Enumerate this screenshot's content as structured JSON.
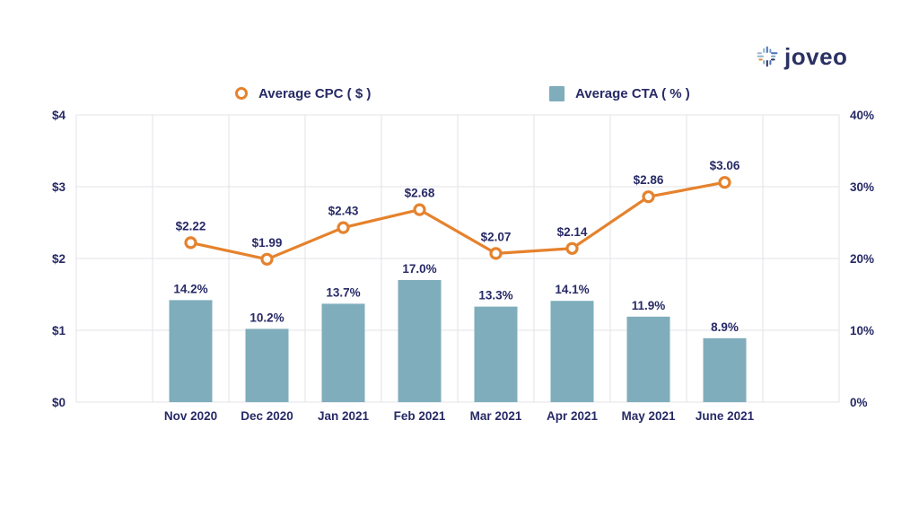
{
  "logo": {
    "text": "joveo"
  },
  "colors": {
    "accent_orange": "#E5822D",
    "bar_teal": "#7FADBB",
    "text_navy": "#272A66",
    "grid_gray": "#E3E3E9"
  },
  "chart_data": {
    "type": "combo",
    "grid": true,
    "legend_position": "top",
    "grid_color": "#E3E3E9",
    "categories": [
      "Nov 2020",
      "Dec 2020",
      "Jan 2021",
      "Feb 2021",
      "Mar 2021",
      "Apr 2021",
      "May 2021",
      "June 2021"
    ],
    "series": [
      {
        "name": "Average CPC ( $ )",
        "type": "line",
        "axis": "left",
        "color": "#E5822D",
        "values": [
          2.22,
          1.99,
          2.43,
          2.68,
          2.07,
          2.14,
          2.86,
          3.06
        ],
        "labels": [
          "$2.22",
          "$1.99",
          "$2.43",
          "$2.68",
          "$2.07",
          "$2.14",
          "$2.86",
          "$3.06"
        ]
      },
      {
        "name": "Average CTA ( % )",
        "type": "bar",
        "axis": "right",
        "color": "#7FADBB",
        "values": [
          14.2,
          10.2,
          13.7,
          17.0,
          13.3,
          14.1,
          11.9,
          8.9
        ],
        "labels": [
          "14.2%",
          "10.2%",
          "13.7%",
          "17.0%",
          "13.3%",
          "14.1%",
          "11.9%",
          "8.9%"
        ]
      }
    ],
    "left_axis": {
      "min": 0,
      "max": 4,
      "tick_labels": [
        "$0",
        "$1",
        "$2",
        "$3",
        "$4"
      ]
    },
    "right_axis": {
      "min": 0,
      "max": 40,
      "tick_labels": [
        "0%",
        "10%",
        "20%",
        "30%",
        "40%"
      ]
    }
  }
}
